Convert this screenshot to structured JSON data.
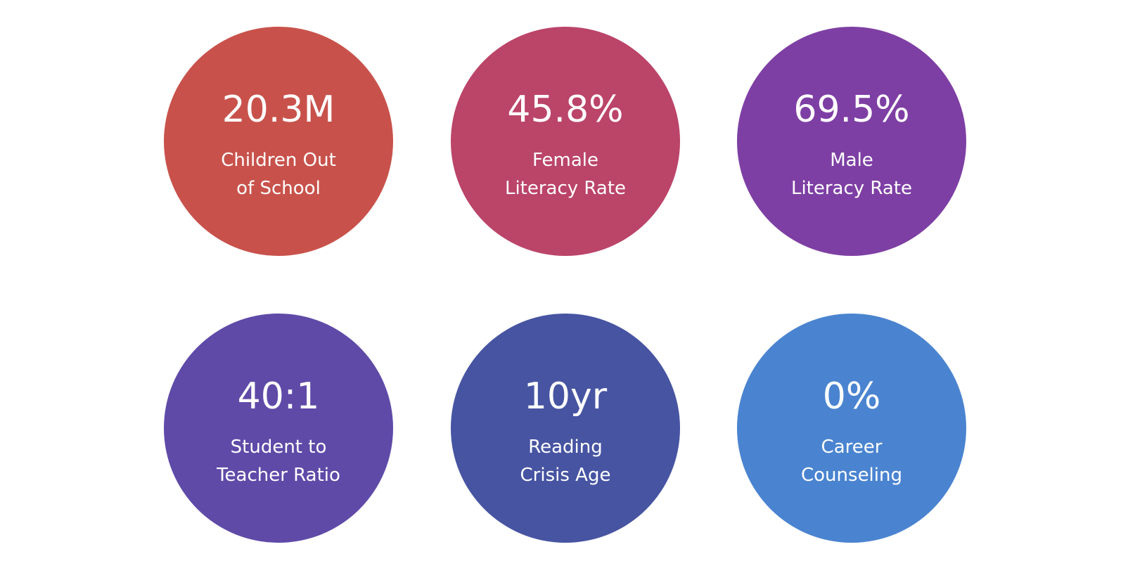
{
  "stats": [
    {
      "value": "20.3M",
      "label": [
        "Children Out",
        "of School"
      ],
      "color": "#c8524b"
    },
    {
      "value": "45.8%",
      "label": [
        "Female",
        "Literacy Rate"
      ],
      "color": "#bb4469"
    },
    {
      "value": "69.5%",
      "label": [
        "Male",
        "Literacy Rate"
      ],
      "color": "#7e3fa4"
    },
    {
      "value": "40:1",
      "label": [
        "Student to",
        "Teacher Ratio"
      ],
      "color": "#5f4aa8"
    },
    {
      "value": "10yr",
      "label": [
        "Reading",
        "Crisis Age"
      ],
      "color": "#4754a2"
    },
    {
      "value": "0%",
      "label": [
        "Career",
        "Counseling"
      ],
      "color": "#4a84d0"
    }
  ]
}
